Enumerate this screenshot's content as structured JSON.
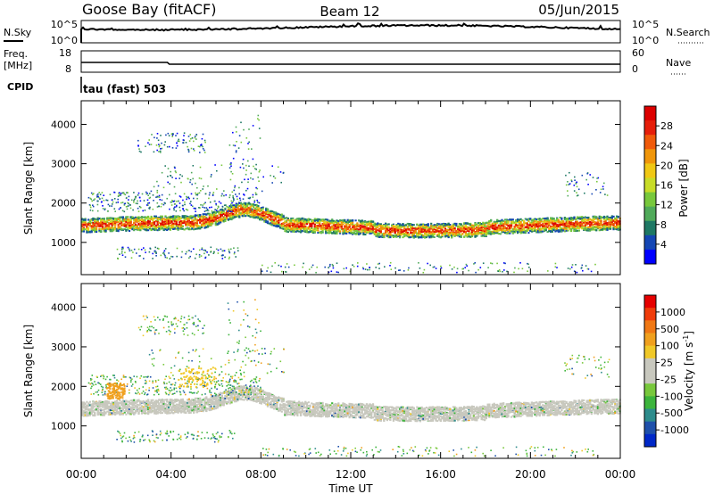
{
  "header": {
    "station": "Goose Bay (fitACF)",
    "beam": "Beam 12",
    "date": "05/Jun/2015"
  },
  "noise_panel": {
    "left_label": "N.Sky",
    "right_label": "N.Search",
    "left_ticks": [
      "10^5",
      "10^0"
    ],
    "right_ticks": [
      "10^5",
      "10^0"
    ]
  },
  "freq_panel": {
    "left_label_1": "Freq.",
    "left_label_2": "[MHz]",
    "right_label": "Nave",
    "left_ticks": [
      "18",
      "8"
    ],
    "right_ticks": [
      "60",
      "0"
    ]
  },
  "cpid_panel": {
    "label": "CPID",
    "text": "tau (fast) 503"
  },
  "chart_data": [
    {
      "type": "heatmap",
      "name": "power",
      "ylabel": "Slant Range [km]",
      "colorbar_label": "Power [dB]",
      "colorbar_ticks": [
        "28",
        "24",
        "20",
        "16",
        "12",
        "8",
        "4"
      ],
      "colorbar_colors": [
        "#0000ff",
        "#1446b4",
        "#1e7864",
        "#50aa5a",
        "#78c83c",
        "#c8dc28",
        "#f0c814",
        "#f0960a",
        "#f05a0a",
        "#e61e0a",
        "#dc0000"
      ],
      "y_ticks": [
        "4000",
        "3000",
        "2000",
        "1000"
      ],
      "ylim": [
        180,
        4600
      ],
      "x_ticks": [
        "00:00",
        "04:00",
        "08:00",
        "12:00",
        "16:00",
        "20:00",
        "00:00"
      ],
      "xlim_hours": [
        0,
        24
      ],
      "main_band_km": [
        1300,
        1650
      ],
      "main_band_peak_power_db": 28
    },
    {
      "type": "heatmap",
      "name": "velocity",
      "ylabel": "Slant Range [km]",
      "colorbar_label": "Velocity [m s",
      "colorbar_superscript": "-1",
      "colorbar_label_end": "]",
      "colorbar_ticks": [
        "1000",
        "500",
        "100",
        "25",
        "-25",
        "-100",
        "-500",
        "-1000"
      ],
      "colorbar_colors": [
        "#0028c8",
        "#1e50aa",
        "#2d8c8c",
        "#3cb43c",
        "#78c83c",
        "#c8c8be",
        "#c8c8be",
        "#f0c828",
        "#f0a01e",
        "#f07814",
        "#f03c0a",
        "#e60000"
      ],
      "y_ticks": [
        "4000",
        "3000",
        "2000",
        "1000"
      ],
      "ylim": [
        180,
        4600
      ],
      "x_ticks": [
        "00:00",
        "04:00",
        "08:00",
        "12:00",
        "16:00",
        "20:00",
        "00:00"
      ],
      "xlabel": "Time UT",
      "xlim_hours": [
        0,
        24
      ],
      "ground_scatter_color": "#c8c8be"
    }
  ],
  "colors": {
    "ground_scatter": "#c8c8be",
    "axis": "#000000",
    "background": "#ffffff"
  }
}
